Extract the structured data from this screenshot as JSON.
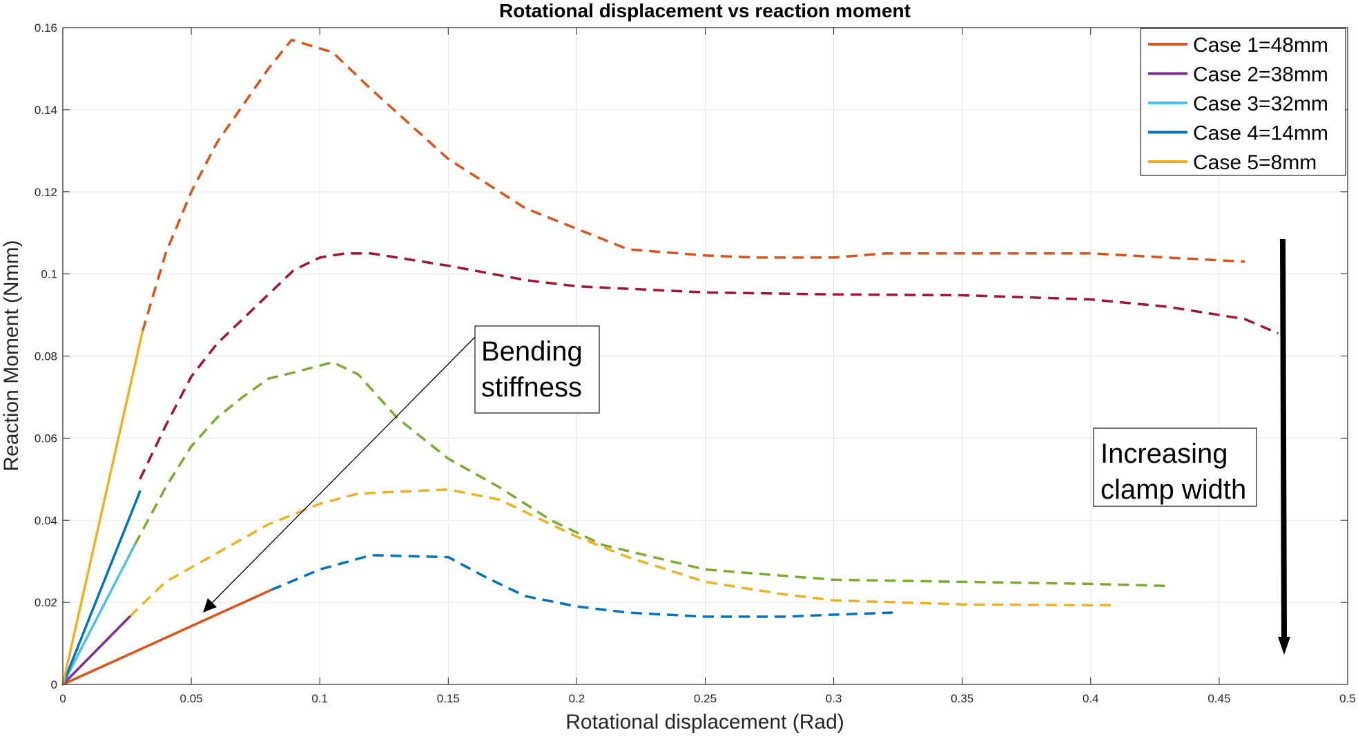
{
  "chart_data": {
    "type": "line",
    "title": "Rotational displacement vs reaction moment",
    "xlabel": "Rotational displacement (Rad)",
    "ylabel": "Reaction Moment (Nmm)",
    "xlim": [
      0,
      0.5
    ],
    "ylim": [
      0,
      0.16
    ],
    "xticks": [
      0,
      0.05,
      0.1,
      0.15,
      0.2,
      0.25,
      0.3,
      0.35,
      0.4,
      0.45,
      0.5
    ],
    "xtick_labels": [
      "0",
      "0.05",
      "0.1",
      "0.15",
      "0.2",
      "0.25",
      "0.3",
      "0.35",
      "0.4",
      "0.45",
      "0.5"
    ],
    "yticks": [
      0,
      0.02,
      0.04,
      0.06,
      0.08,
      0.1,
      0.12,
      0.14,
      0.16
    ],
    "ytick_labels": [
      "0",
      "0.02",
      "0.04",
      "0.06",
      "0.08",
      "0.1",
      "0.12",
      "0.14",
      "0.16"
    ],
    "grid": true,
    "legend_position": "top-right",
    "series": [
      {
        "name": "Case 1=48mm",
        "color": "#D95319",
        "linear": [
          [
            0,
            0
          ],
          [
            0.081,
            0.023
          ]
        ],
        "nonlinear_color": "#D95319",
        "nonlinear": [
          [
            0.031,
            0.086
          ],
          [
            0.04,
            0.105
          ],
          [
            0.05,
            0.12
          ],
          [
            0.06,
            0.132
          ],
          [
            0.07,
            0.141
          ],
          [
            0.08,
            0.15
          ],
          [
            0.089,
            0.157
          ],
          [
            0.105,
            0.154
          ],
          [
            0.12,
            0.145
          ],
          [
            0.15,
            0.128
          ],
          [
            0.18,
            0.116
          ],
          [
            0.2,
            0.111
          ],
          [
            0.22,
            0.106
          ],
          [
            0.25,
            0.1045
          ],
          [
            0.27,
            0.104
          ],
          [
            0.3,
            0.104
          ],
          [
            0.32,
            0.105
          ],
          [
            0.35,
            0.105
          ],
          [
            0.4,
            0.105
          ],
          [
            0.43,
            0.104
          ],
          [
            0.46,
            0.103
          ]
        ]
      },
      {
        "name": "Case 2=38mm",
        "color": "#7E2F8E",
        "linear": [
          [
            0,
            0
          ],
          [
            0.026,
            0.0165
          ]
        ],
        "nonlinear_color": "#A2142F",
        "nonlinear": [
          [
            0.03,
            0.05
          ],
          [
            0.04,
            0.063
          ],
          [
            0.05,
            0.075
          ],
          [
            0.06,
            0.083
          ],
          [
            0.08,
            0.095
          ],
          [
            0.09,
            0.101
          ],
          [
            0.1,
            0.104
          ],
          [
            0.11,
            0.105
          ],
          [
            0.12,
            0.105
          ],
          [
            0.15,
            0.102
          ],
          [
            0.18,
            0.0985
          ],
          [
            0.2,
            0.097
          ],
          [
            0.25,
            0.0955
          ],
          [
            0.3,
            0.095
          ],
          [
            0.35,
            0.0948
          ],
          [
            0.4,
            0.0938
          ],
          [
            0.43,
            0.092
          ],
          [
            0.46,
            0.089
          ],
          [
            0.473,
            0.0855
          ]
        ]
      },
      {
        "name": "Case 3=32mm",
        "color": "#4DBEEE",
        "linear": [
          [
            0,
            0
          ],
          [
            0.028,
            0.034
          ]
        ],
        "nonlinear_color": "#77AC30",
        "nonlinear": [
          [
            0.028,
            0.034
          ],
          [
            0.04,
            0.048
          ],
          [
            0.05,
            0.058
          ],
          [
            0.06,
            0.065
          ],
          [
            0.07,
            0.07
          ],
          [
            0.08,
            0.0745
          ],
          [
            0.09,
            0.076
          ],
          [
            0.105,
            0.0785
          ],
          [
            0.115,
            0.0755
          ],
          [
            0.13,
            0.065
          ],
          [
            0.15,
            0.055
          ],
          [
            0.17,
            0.048
          ],
          [
            0.19,
            0.04
          ],
          [
            0.21,
            0.034
          ],
          [
            0.25,
            0.028
          ],
          [
            0.3,
            0.0255
          ],
          [
            0.35,
            0.025
          ],
          [
            0.4,
            0.0245
          ],
          [
            0.43,
            0.024
          ]
        ]
      },
      {
        "name": "Case 4=14mm",
        "color": "#0072BD",
        "linear": [
          [
            0,
            0
          ],
          [
            0.03,
            0.047
          ]
        ],
        "nonlinear_color": "#0072BD",
        "nonlinear": [
          [
            0.081,
            0.023
          ],
          [
            0.1,
            0.028
          ],
          [
            0.12,
            0.0315
          ],
          [
            0.15,
            0.031
          ],
          [
            0.165,
            0.026
          ],
          [
            0.18,
            0.0215
          ],
          [
            0.2,
            0.019
          ],
          [
            0.22,
            0.0175
          ],
          [
            0.25,
            0.0165
          ],
          [
            0.28,
            0.0165
          ],
          [
            0.3,
            0.017
          ],
          [
            0.323,
            0.0175
          ]
        ]
      },
      {
        "name": "Case 5=8mm",
        "color": "#EDB120",
        "linear": [
          [
            0,
            0
          ],
          [
            0.031,
            0.086
          ]
        ],
        "nonlinear_color": "#EDB120",
        "nonlinear": [
          [
            0.026,
            0.0165
          ],
          [
            0.04,
            0.025
          ],
          [
            0.06,
            0.032
          ],
          [
            0.08,
            0.039
          ],
          [
            0.1,
            0.044
          ],
          [
            0.115,
            0.0465
          ],
          [
            0.15,
            0.0475
          ],
          [
            0.17,
            0.045
          ],
          [
            0.2,
            0.036
          ],
          [
            0.22,
            0.031
          ],
          [
            0.25,
            0.025
          ],
          [
            0.28,
            0.022
          ],
          [
            0.3,
            0.0205
          ],
          [
            0.35,
            0.0195
          ],
          [
            0.4,
            0.0193
          ],
          [
            0.41,
            0.0193
          ]
        ]
      }
    ],
    "annotations": {
      "bending_line1": "Bending",
      "bending_line2": "stiffness",
      "clamp_line1": "Increasing",
      "clamp_line2": "clamp width"
    }
  }
}
